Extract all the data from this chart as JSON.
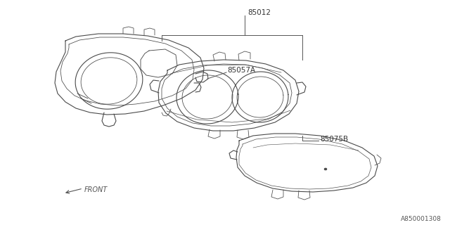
{
  "bg_color": "#ffffff",
  "line_color": "#4a4a4a",
  "label_85012": "85012",
  "label_85057A": "85057A",
  "label_85075B": "85075B",
  "label_front": "FRONT",
  "label_part_number": "A850001308"
}
